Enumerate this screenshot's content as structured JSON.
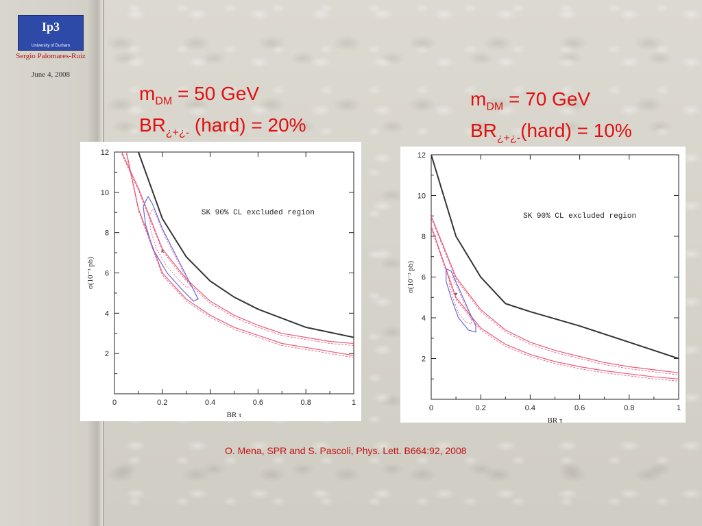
{
  "header": {
    "logo_text": "Ip3",
    "logo_subtext": "University of Durham",
    "author": "Sergio Palomares-Ruiz",
    "date": "June 4, 2008"
  },
  "panels": [
    {
      "title_line1_main": "m",
      "title_line1_sub": "DM",
      "title_line1_rest": " = 50 GeV",
      "title_line2_main": "BR",
      "title_line2_sub": "¿+¿-",
      "title_line2_rest": " (hard) = 20%"
    },
    {
      "title_line1_main": "m",
      "title_line1_sub": "DM",
      "title_line1_rest": " = 70 GeV",
      "title_line2_main": "BR",
      "title_line2_sub": "¿+¿-",
      "title_line2_rest": "(hard) = 10%"
    }
  ],
  "citation": "O. Mena, SPR and S. Pascoli, Phys. Lett. B664:92, 2008",
  "colors": {
    "title": "#e01010",
    "exclusion": "#333333",
    "band": "#e85a7a",
    "ellipse": "#6666dd"
  },
  "chart_data": [
    {
      "type": "line",
      "xlabel": "BR τ",
      "ylabel": "σ(10⁻³ pb)",
      "xlim": [
        0,
        1
      ],
      "ylim": [
        0,
        12
      ],
      "x_ticks": [
        "0",
        "0.2",
        "0.4",
        "0.6",
        "0.8",
        "1"
      ],
      "y_ticks": [
        "2",
        "4",
        "6",
        "8",
        "10",
        "12"
      ],
      "annotation": "SK 90% CL excluded region",
      "best_fit": {
        "x": 0.2,
        "y": 7.0
      },
      "series": [
        {
          "role": "excluded_boundary",
          "x": [
            0.1,
            0.2,
            0.3,
            0.4,
            0.5,
            0.6,
            0.8,
            1.0
          ],
          "y": [
            12.0,
            8.7,
            6.8,
            5.6,
            4.8,
            4.2,
            3.3,
            2.8
          ]
        },
        {
          "role": "band_upper",
          "x": [
            0.03,
            0.1,
            0.2,
            0.3,
            0.4,
            0.5,
            0.6,
            0.7,
            0.8,
            0.9,
            1.0
          ],
          "y": [
            12.0,
            10.2,
            7.2,
            5.7,
            4.6,
            3.9,
            3.4,
            3.0,
            2.8,
            2.6,
            2.5
          ]
        },
        {
          "role": "band_lower",
          "x": [
            0.05,
            0.1,
            0.2,
            0.3,
            0.4,
            0.5,
            0.6,
            0.7,
            0.8,
            0.9,
            1.0
          ],
          "y": [
            12.0,
            9.2,
            6.0,
            4.7,
            3.9,
            3.3,
            2.9,
            2.5,
            2.3,
            2.1,
            1.9
          ]
        },
        {
          "role": "allowed_contour",
          "x": [
            0.14,
            0.16,
            0.2,
            0.26,
            0.32,
            0.35,
            0.33,
            0.28,
            0.22,
            0.16,
            0.13,
            0.12,
            0.14
          ],
          "y": [
            9.8,
            9.4,
            8.2,
            6.8,
            5.4,
            4.7,
            4.6,
            5.2,
            6.0,
            7.2,
            8.4,
            9.3,
            9.8
          ]
        }
      ]
    },
    {
      "type": "line",
      "xlabel": "BR τ",
      "ylabel": "σ(10⁻³ pb)",
      "xlim": [
        0,
        1
      ],
      "ylim": [
        0,
        12
      ],
      "x_ticks": [
        "0",
        "0.2",
        "0.4",
        "0.6",
        "0.8",
        "1"
      ],
      "y_ticks": [
        "2",
        "4",
        "6",
        "8",
        "10",
        "12"
      ],
      "annotation": "SK 90% CL excluded region",
      "best_fit": {
        "x": 0.1,
        "y": 5.1
      },
      "series": [
        {
          "role": "excluded_boundary",
          "x": [
            0.0,
            0.1,
            0.2,
            0.3,
            0.4,
            0.6,
            0.8,
            1.0
          ],
          "y": [
            12.0,
            8.0,
            6.0,
            4.7,
            4.3,
            3.6,
            2.8,
            2.0
          ]
        },
        {
          "role": "band_upper",
          "x": [
            0.0,
            0.1,
            0.2,
            0.3,
            0.4,
            0.5,
            0.6,
            0.7,
            0.8,
            0.9,
            1.0
          ],
          "y": [
            9.0,
            6.0,
            4.4,
            3.4,
            2.8,
            2.4,
            2.1,
            1.8,
            1.6,
            1.45,
            1.3
          ]
        },
        {
          "role": "band_lower",
          "x": [
            0.0,
            0.1,
            0.2,
            0.3,
            0.4,
            0.5,
            0.6,
            0.7,
            0.8,
            0.9,
            1.0
          ],
          "y": [
            8.5,
            5.0,
            3.5,
            2.7,
            2.2,
            1.85,
            1.6,
            1.4,
            1.25,
            1.1,
            1.0
          ]
        },
        {
          "role": "allowed_contour",
          "x": [
            0.06,
            0.08,
            0.11,
            0.15,
            0.18,
            0.18,
            0.15,
            0.11,
            0.08,
            0.06,
            0.06
          ],
          "y": [
            6.4,
            6.3,
            5.5,
            4.4,
            3.6,
            3.3,
            3.4,
            4.0,
            5.0,
            5.8,
            6.4
          ]
        }
      ]
    }
  ]
}
